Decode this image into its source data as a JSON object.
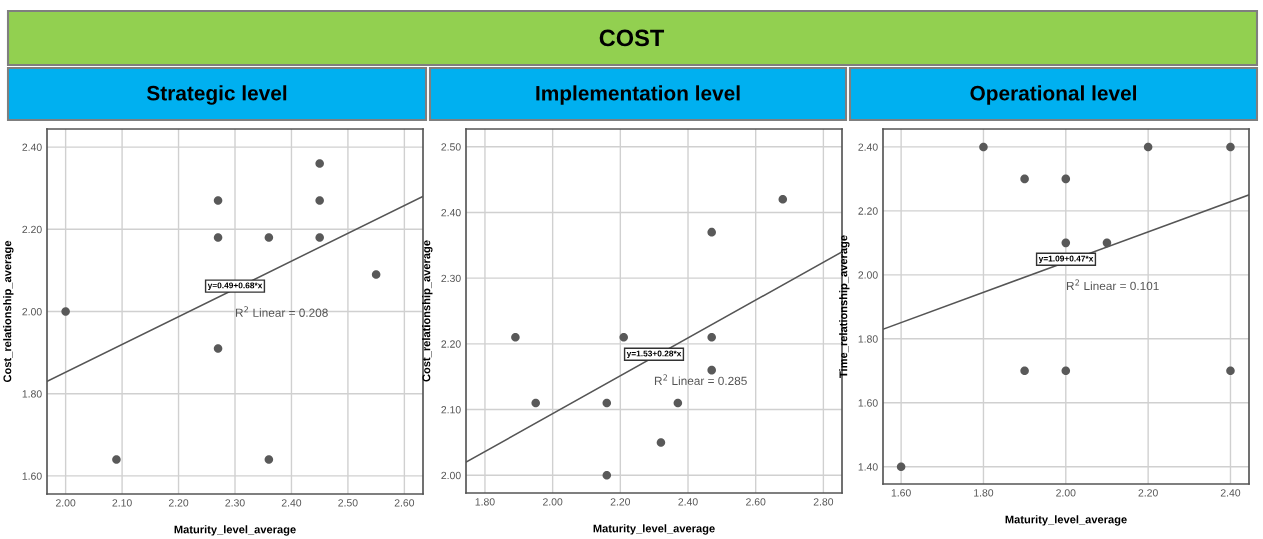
{
  "chart_data": [
    {
      "type": "scatter",
      "title": "Strategic level",
      "xlabel": "Maturity_level_average",
      "ylabel": "Cost_relationship_average",
      "x": [
        2.0,
        2.09,
        2.27,
        2.27,
        2.27,
        2.36,
        2.36,
        2.45,
        2.45,
        2.45,
        2.55
      ],
      "series": [
        {
          "marker": "circle",
          "color": "#595959",
          "values": [
            2.0,
            1.64,
            2.27,
            2.18,
            1.91,
            2.18,
            1.64,
            2.36,
            2.27,
            2.18,
            2.09
          ]
        },
        {
          "type": "line",
          "marker": "none",
          "color": "#555555",
          "x": [
            1.967,
            2.633
          ],
          "values": [
            1.83,
            2.28
          ]
        }
      ],
      "annotations": [
        "COST",
        "y=0.49+0.68*x",
        "R$^{2}$ Linear = 0.208"
      ],
      "xlim": [
        1.967,
        2.633
      ],
      "ylim": [
        1.556,
        2.444
      ],
      "xticks": [
        {
          "value": 2.0,
          "label": "2.00"
        },
        {
          "value": 2.1,
          "label": "2.10"
        },
        {
          "value": 2.2,
          "label": "2.20"
        },
        {
          "value": 2.3,
          "label": "2.30"
        },
        {
          "value": 2.4,
          "label": "2.40"
        },
        {
          "value": 2.5,
          "label": "2.50"
        },
        {
          "value": 2.6,
          "label": "2.60"
        }
      ],
      "yticks": [
        {
          "value": 1.6,
          "label": "1.60"
        },
        {
          "value": 1.8,
          "label": "1.80"
        },
        {
          "value": 2.0,
          "label": "2.00"
        },
        {
          "value": 2.2,
          "label": "2.20"
        },
        {
          "value": 2.4,
          "label": "2.40"
        }
      ],
      "grid": true,
      "legend": false
    },
    {
      "type": "scatter",
      "title": "Implementation level",
      "xlabel": "Maturity_level_average",
      "ylabel": "Cost_relationship_average",
      "x": [
        1.89,
        1.95,
        2.16,
        2.16,
        2.21,
        2.32,
        2.37,
        2.47,
        2.47,
        2.47,
        2.68
      ],
      "series": [
        {
          "marker": "circle",
          "color": "#595959",
          "values": [
            2.21,
            2.11,
            2.11,
            2.0,
            2.21,
            2.05,
            2.11,
            2.37,
            2.21,
            2.16,
            2.42
          ]
        },
        {
          "type": "line",
          "marker": "none",
          "color": "#555555",
          "x": [
            1.744,
            2.855
          ],
          "values": [
            2.02,
            2.34
          ]
        }
      ],
      "annotations": [
        "y=1.53+0.28*x",
        "R$^{2}$ Linear = 0.285"
      ],
      "xlim": [
        1.744,
        2.855
      ],
      "ylim": [
        1.973,
        2.527
      ],
      "xticks": [
        {
          "value": 1.8,
          "label": "1.80"
        },
        {
          "value": 2.0,
          "label": "2.00"
        },
        {
          "value": 2.2,
          "label": "2.20"
        },
        {
          "value": 2.4,
          "label": "2.40"
        },
        {
          "value": 2.6,
          "label": "2.60"
        },
        {
          "value": 2.8,
          "label": "2.80"
        }
      ],
      "yticks": [
        {
          "value": 2.0,
          "label": "2.00"
        },
        {
          "value": 2.1,
          "label": "2.10"
        },
        {
          "value": 2.2,
          "label": "2.20"
        },
        {
          "value": 2.3,
          "label": "2.30"
        },
        {
          "value": 2.4,
          "label": "2.40"
        },
        {
          "value": 2.5,
          "label": "2.50"
        }
      ],
      "grid": true,
      "legend": false
    },
    {
      "type": "scatter",
      "title": "Operational level",
      "xlabel": "Maturity_level_average",
      "ylabel": "Time_relationship_average",
      "x": [
        1.6,
        1.8,
        1.9,
        1.9,
        2.0,
        2.0,
        2.0,
        2.1,
        2.2,
        2.4,
        2.4
      ],
      "series": [
        {
          "marker": "circle",
          "color": "#595959",
          "values": [
            1.4,
            2.4,
            2.3,
            1.7,
            2.3,
            2.1,
            1.7,
            2.1,
            2.4,
            2.4,
            1.7
          ]
        },
        {
          "type": "line",
          "marker": "none",
          "color": "#555555",
          "x": [
            1.556,
            2.445
          ],
          "values": [
            1.83,
            2.25
          ]
        }
      ],
      "annotations": [
        "y=1.09+0.47*x",
        "R$^{2}$ Linear = 0.101"
      ],
      "xlim": [
        1.556,
        2.445
      ],
      "ylim": [
        1.346,
        2.456
      ],
      "xticks": [
        {
          "value": 1.6,
          "label": "1.60"
        },
        {
          "value": 1.8,
          "label": "1.80"
        },
        {
          "value": 2.0,
          "label": "2.00"
        },
        {
          "value": 2.2,
          "label": "2.20"
        },
        {
          "value": 2.4,
          "label": "2.40"
        }
      ],
      "yticks": [
        {
          "value": 1.4,
          "label": "1.40"
        },
        {
          "value": 1.6,
          "label": "1.60"
        },
        {
          "value": 1.8,
          "label": "1.80"
        },
        {
          "value": 2.0,
          "label": "2.00"
        },
        {
          "value": 2.2,
          "label": "2.20"
        },
        {
          "value": 2.4,
          "label": "2.40"
        }
      ],
      "grid": true,
      "legend": false
    }
  ]
}
